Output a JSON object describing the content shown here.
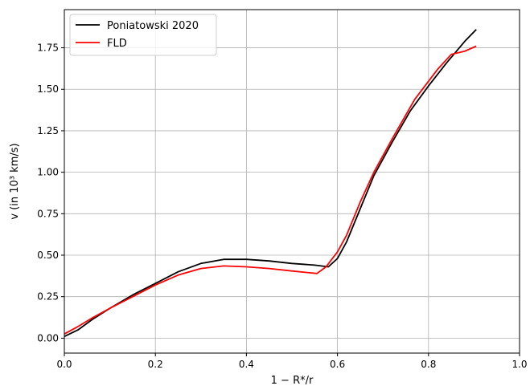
{
  "chart_data": {
    "type": "line",
    "xlabel": "1 − R*/r",
    "ylabel": "v (in 10³ km/s)",
    "xlim": [
      0.0,
      1.0
    ],
    "ylim": [
      -0.09,
      1.98
    ],
    "grid": true,
    "legend_position": "top-left",
    "x_ticks": [
      "0.0",
      "0.2",
      "0.4",
      "0.6",
      "0.8",
      "1.0"
    ],
    "y_ticks": [
      "0.00",
      "0.25",
      "0.50",
      "0.75",
      "1.00",
      "1.25",
      "1.50",
      "1.75"
    ],
    "series": [
      {
        "name": "Poniatowski 2020",
        "color": "#000000",
        "x": [
          0.0,
          0.03,
          0.06,
          0.1,
          0.15,
          0.2,
          0.25,
          0.3,
          0.35,
          0.4,
          0.45,
          0.5,
          0.55,
          0.58,
          0.6,
          0.62,
          0.65,
          0.68,
          0.72,
          0.76,
          0.8,
          0.84,
          0.88,
          0.905
        ],
        "y": [
          0.01,
          0.05,
          0.11,
          0.18,
          0.26,
          0.33,
          0.4,
          0.45,
          0.475,
          0.475,
          0.465,
          0.45,
          0.44,
          0.43,
          0.48,
          0.58,
          0.78,
          0.98,
          1.18,
          1.37,
          1.52,
          1.66,
          1.79,
          1.86
        ]
      },
      {
        "name": "FLD",
        "color": "#ff0000",
        "x": [
          0.0,
          0.03,
          0.06,
          0.1,
          0.15,
          0.2,
          0.25,
          0.3,
          0.35,
          0.4,
          0.45,
          0.5,
          0.555,
          0.575,
          0.6,
          0.62,
          0.65,
          0.68,
          0.72,
          0.77,
          0.82,
          0.85,
          0.88,
          0.905
        ],
        "y": [
          0.025,
          0.07,
          0.12,
          0.18,
          0.25,
          0.32,
          0.38,
          0.42,
          0.435,
          0.43,
          0.42,
          0.405,
          0.39,
          0.43,
          0.52,
          0.62,
          0.82,
          1.0,
          1.2,
          1.44,
          1.62,
          1.71,
          1.73,
          1.76
        ]
      }
    ]
  }
}
